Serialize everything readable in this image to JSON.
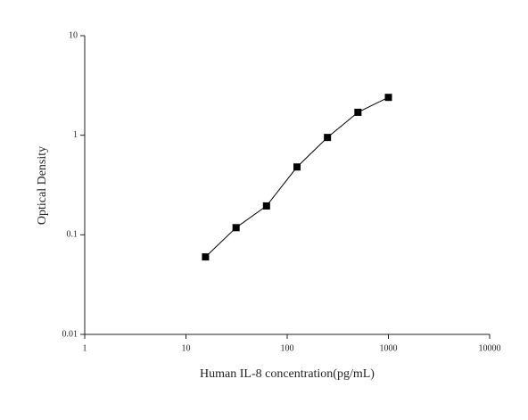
{
  "chart_data": {
    "type": "line",
    "x_label": "Human IL-8 concentration(pg/mL)",
    "y_label": "Optical Density",
    "x": [
      15.6,
      31.25,
      62.5,
      125,
      250,
      500,
      1000
    ],
    "values": [
      0.06,
      0.118,
      0.195,
      0.48,
      0.95,
      1.7,
      2.4
    ],
    "color": "#000000",
    "xscale": "log",
    "yscale": "log",
    "xlim": [
      1,
      10000
    ],
    "xticks": [
      1,
      10,
      100,
      1000,
      10000
    ],
    "ylim": [
      0.01,
      10
    ],
    "yticks": [
      0.01,
      0.1,
      1,
      10
    ]
  }
}
